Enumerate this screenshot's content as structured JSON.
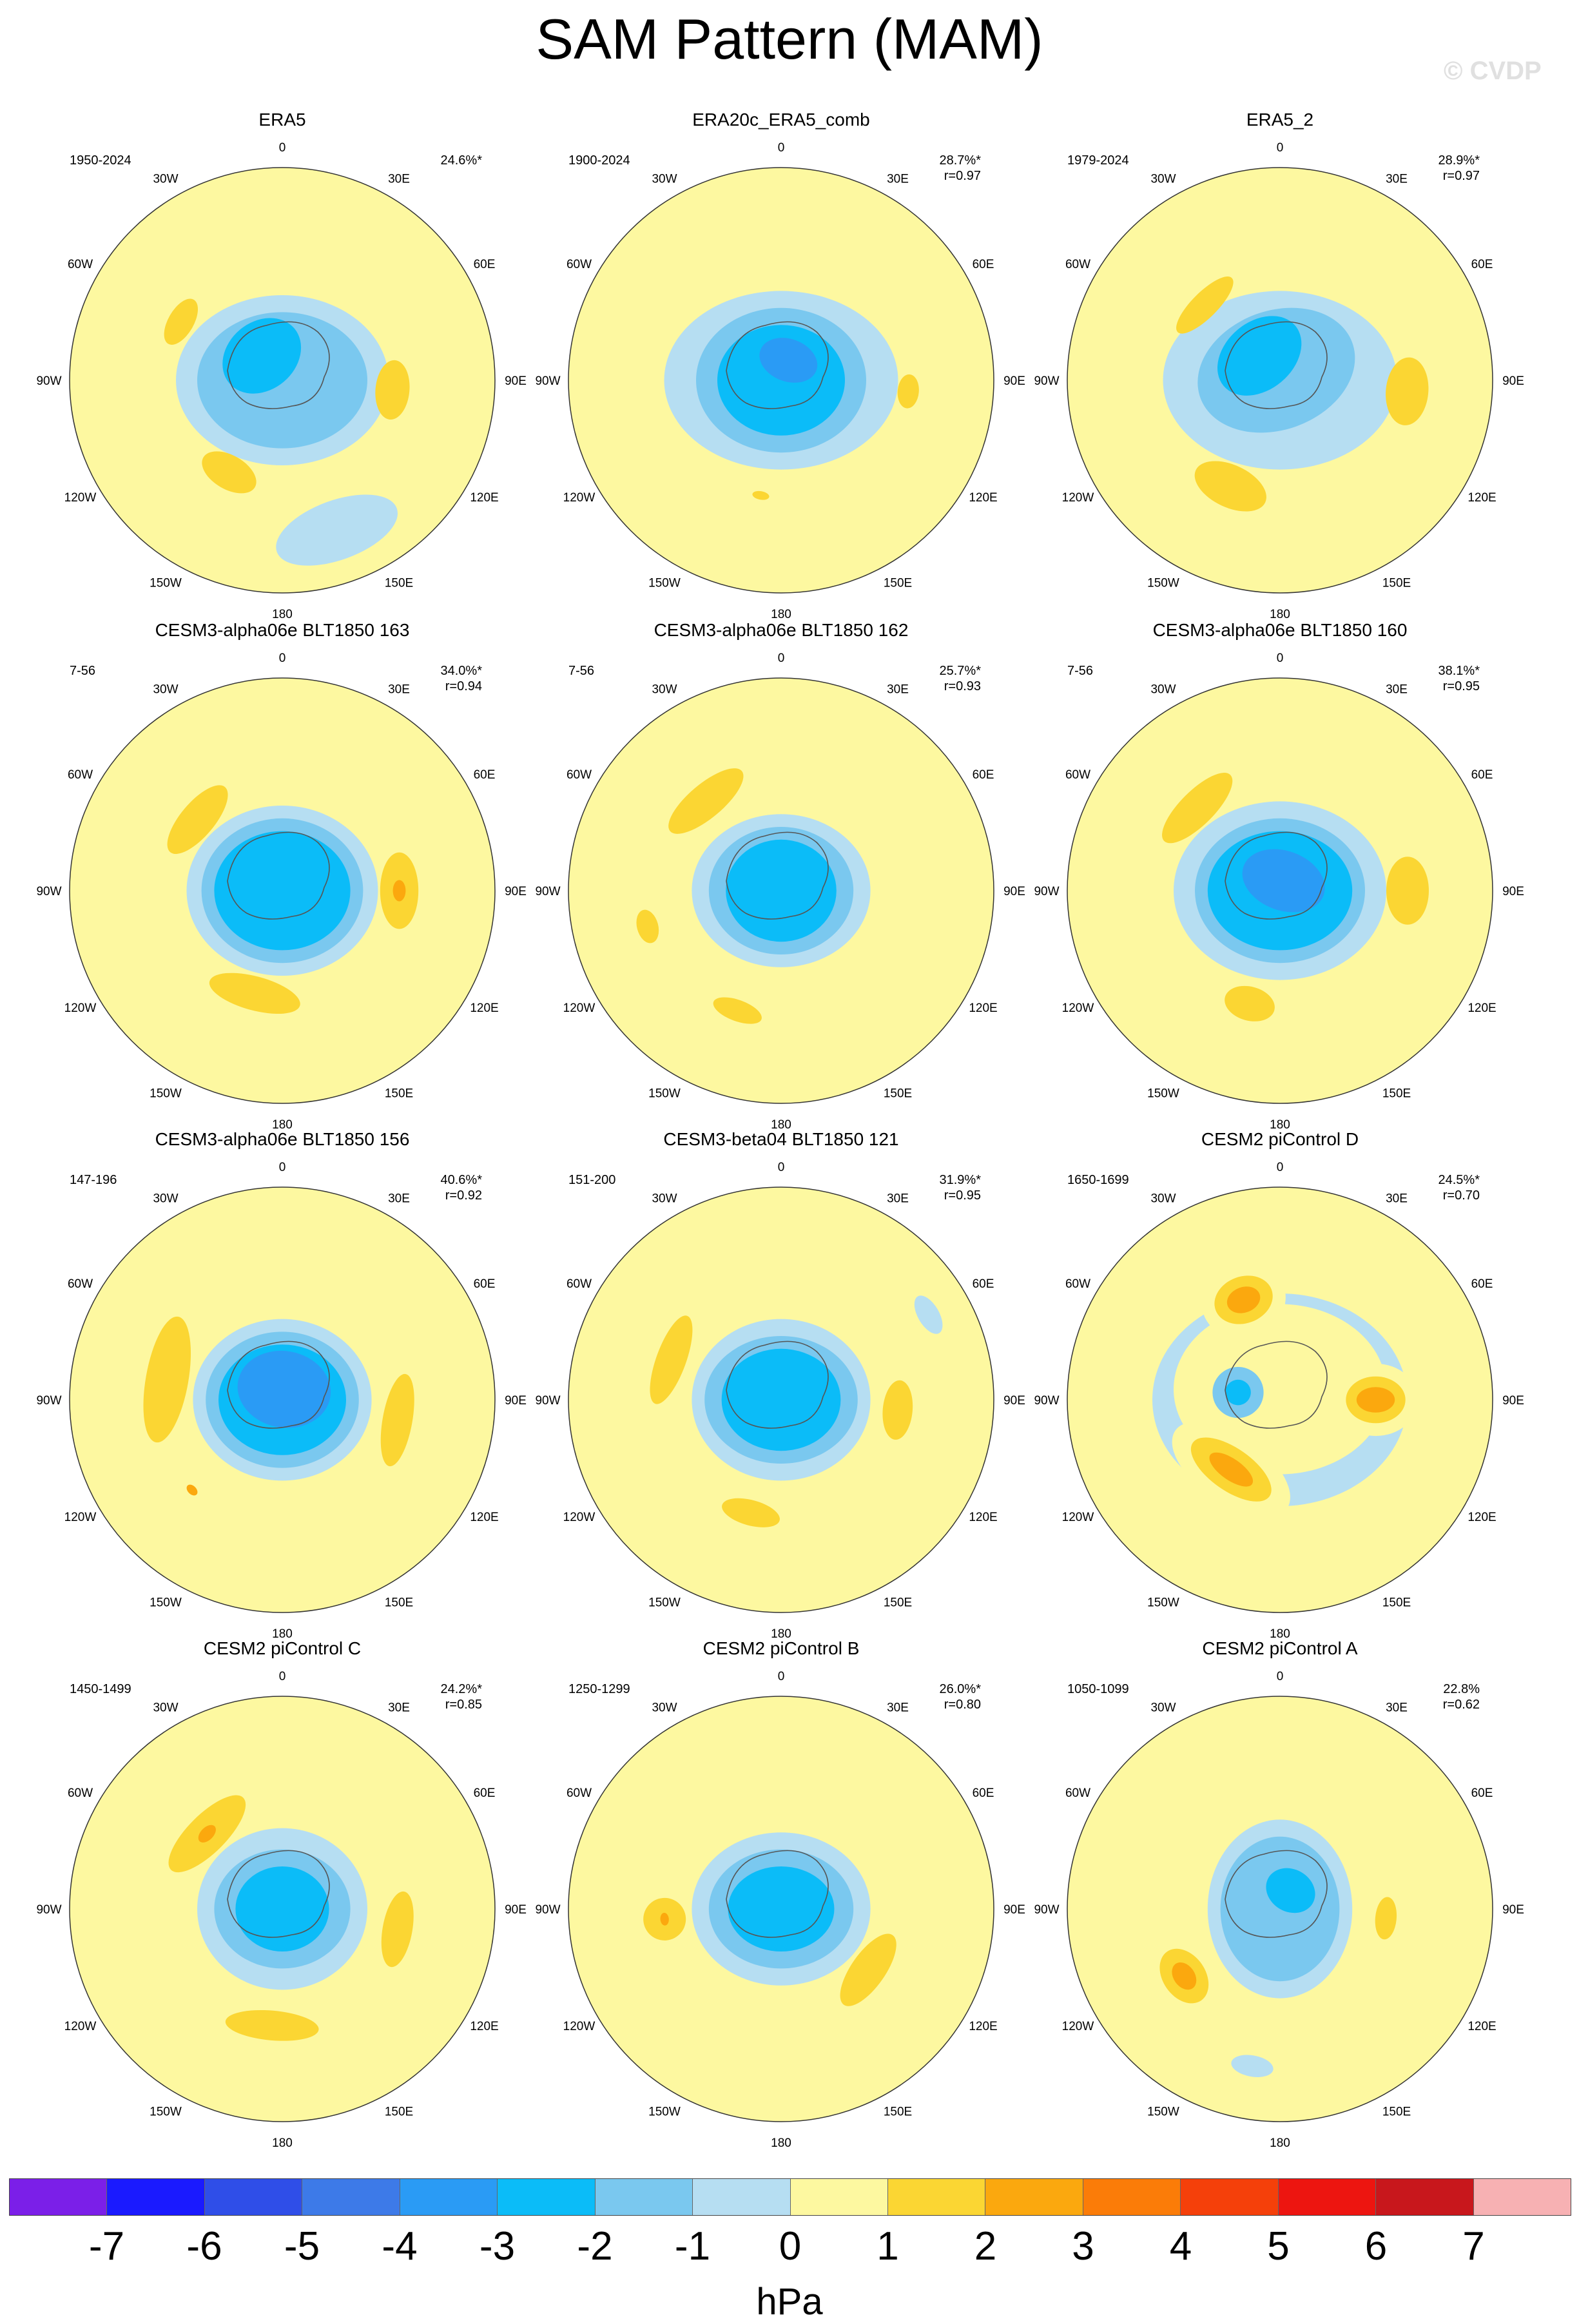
{
  "title": "SAM Pattern (MAM)",
  "watermark": "© CVDP",
  "units": "hPa",
  "colors": {
    "-7": "#7b1fe8",
    "-6": "#1a1aff",
    "-5": "#2f4ee8",
    "-4": "#3d7ae8",
    "-3": "#2a9bf5",
    "-2": "#0bbcf8",
    "-1": "#7ac8ef",
    "0": "#b6def2",
    "1": "#fdf8a0",
    "2": "#fbd633",
    "3": "#fba80e",
    "4": "#fb7c08",
    "5": "#f5400a",
    "6": "#ed1510",
    "7": "#c8171c",
    "8": "#f7b1b3"
  },
  "colorbar": {
    "labels": [
      "-7",
      "-6",
      "-5",
      "-4",
      "-3",
      "-2",
      "-1",
      "0",
      "1",
      "2",
      "3",
      "4",
      "5",
      "6",
      "7"
    ],
    "cell_colors": [
      "#7b1fe8",
      "#1a1aff",
      "#2f4ee8",
      "#3d7ae8",
      "#2a9bf5",
      "#0bbcf8",
      "#7ac8ef",
      "#b6def2",
      "#fdf8a0",
      "#fbd633",
      "#fba80e",
      "#fb7c08",
      "#f5400a",
      "#ed1510",
      "#c8171c",
      "#f7b1b3"
    ]
  },
  "axis_labels": {
    "0": "0",
    "30E": "30E",
    "60E": "60E",
    "90E": "90E",
    "120E": "120E",
    "150E": "150E",
    "180": "180",
    "150W": "150W",
    "120W": "120W",
    "90W": "90W",
    "60W": "60W",
    "30W": "30W"
  },
  "chart_data": [
    {
      "type": "heatmap",
      "title": "ERA5",
      "years": "1950-2024",
      "pct": "24.6%*",
      "r": "",
      "blobs": [
        {
          "lon": 0,
          "colat": 0,
          "level": -1,
          "rx": 0.5,
          "ry": 0.4
        },
        {
          "lon": 0,
          "colat": 0,
          "level": -2,
          "rx": 0.4,
          "ry": 0.32
        },
        {
          "lon": -40,
          "colat": 0.15,
          "level": -3,
          "rx": 0.2,
          "ry": 0.16
        },
        {
          "lon": 95,
          "colat": 0.52,
          "level": 2,
          "rx": 0.14,
          "ry": 0.08
        },
        {
          "lon": -60,
          "colat": 0.55,
          "level": 2,
          "rx": 0.12,
          "ry": 0.06
        },
        {
          "lon": -150,
          "colat": 0.5,
          "level": 2,
          "rx": 0.14,
          "ry": 0.08
        },
        {
          "lon": 160,
          "colat": 0.75,
          "level": -1,
          "rx": 0.3,
          "ry": 0.14
        }
      ]
    },
    {
      "type": "heatmap",
      "title": "ERA20c_ERA5_comb",
      "years": "1900-2024",
      "pct": "28.7%*",
      "r": "r=0.97",
      "blobs": [
        {
          "lon": 0,
          "colat": 0,
          "level": -1,
          "rx": 0.55,
          "ry": 0.42
        },
        {
          "lon": 0,
          "colat": 0,
          "level": -2,
          "rx": 0.4,
          "ry": 0.34
        },
        {
          "lon": 0,
          "colat": 0,
          "level": -3,
          "rx": 0.3,
          "ry": 0.26
        },
        {
          "lon": 20,
          "colat": 0.1,
          "level": -4,
          "rx": 0.14,
          "ry": 0.1
        },
        {
          "lon": 95,
          "colat": 0.6,
          "level": 2,
          "rx": 0.08,
          "ry": 0.05
        },
        {
          "lon": -170,
          "colat": 0.55,
          "level": 2,
          "rx": 0.04,
          "ry": 0.02
        }
      ]
    },
    {
      "type": "heatmap",
      "title": "ERA5_2",
      "years": "1979-2024",
      "pct": "28.9%*",
      "r": "r=0.97",
      "blobs": [
        {
          "lon": 0,
          "colat": 0,
          "level": -1,
          "rx": 0.55,
          "ry": 0.42
        },
        {
          "lon": -20,
          "colat": 0.05,
          "level": -2,
          "rx": 0.38,
          "ry": 0.28
        },
        {
          "lon": -40,
          "colat": 0.15,
          "level": -3,
          "rx": 0.22,
          "ry": 0.16
        },
        {
          "lon": 95,
          "colat": 0.6,
          "level": 2,
          "rx": 0.16,
          "ry": 0.1
        },
        {
          "lon": -45,
          "colat": 0.5,
          "level": 2,
          "rx": 0.18,
          "ry": 0.06
        },
        {
          "lon": -155,
          "colat": 0.55,
          "level": 2,
          "rx": 0.18,
          "ry": 0.1
        }
      ]
    },
    {
      "type": "heatmap",
      "title": "CESM3-alpha06e BLT1850 163",
      "years": "7-56",
      "pct": "34.0%*",
      "r": "r=0.94",
      "blobs": [
        {
          "lon": 0,
          "colat": 0,
          "level": -1,
          "rx": 0.45,
          "ry": 0.4
        },
        {
          "lon": 0,
          "colat": 0,
          "level": -2,
          "rx": 0.38,
          "ry": 0.34
        },
        {
          "lon": 0,
          "colat": 0,
          "level": -3,
          "rx": 0.32,
          "ry": 0.28
        },
        {
          "lon": 90,
          "colat": 0.55,
          "level": 2,
          "rx": 0.18,
          "ry": 0.09
        },
        {
          "lon": 90,
          "colat": 0.55,
          "level": 3,
          "rx": 0.05,
          "ry": 0.03
        },
        {
          "lon": -50,
          "colat": 0.52,
          "level": 2,
          "rx": 0.2,
          "ry": 0.08
        },
        {
          "lon": -165,
          "colat": 0.5,
          "level": 2,
          "rx": 0.22,
          "ry": 0.08
        }
      ]
    },
    {
      "type": "heatmap",
      "title": "CESM3-alpha06e BLT1850 162",
      "years": "7-56",
      "pct": "25.7%*",
      "r": "r=0.93",
      "blobs": [
        {
          "lon": 0,
          "colat": 0,
          "level": -1,
          "rx": 0.42,
          "ry": 0.36
        },
        {
          "lon": 0,
          "colat": 0,
          "level": -2,
          "rx": 0.34,
          "ry": 0.3
        },
        {
          "lon": 0,
          "colat": 0,
          "level": -3,
          "rx": 0.26,
          "ry": 0.24
        },
        {
          "lon": -40,
          "colat": 0.55,
          "level": 2,
          "rx": 0.22,
          "ry": 0.08
        },
        {
          "lon": -105,
          "colat": 0.65,
          "level": 2,
          "rx": 0.08,
          "ry": 0.05
        },
        {
          "lon": -160,
          "colat": 0.6,
          "level": 2,
          "rx": 0.12,
          "ry": 0.05
        }
      ]
    },
    {
      "type": "heatmap",
      "title": "CESM3-alpha06e BLT1850 160",
      "years": "7-56",
      "pct": "38.1%*",
      "r": "r=0.95",
      "blobs": [
        {
          "lon": 0,
          "colat": 0,
          "level": -1,
          "rx": 0.5,
          "ry": 0.42
        },
        {
          "lon": 0,
          "colat": 0,
          "level": -2,
          "rx": 0.4,
          "ry": 0.34
        },
        {
          "lon": 0,
          "colat": 0,
          "level": -3,
          "rx": 0.34,
          "ry": 0.28
        },
        {
          "lon": 20,
          "colat": 0.05,
          "level": -4,
          "rx": 0.2,
          "ry": 0.14
        },
        {
          "lon": 90,
          "colat": 0.6,
          "level": 2,
          "rx": 0.16,
          "ry": 0.1
        },
        {
          "lon": -45,
          "colat": 0.55,
          "level": 2,
          "rx": 0.22,
          "ry": 0.08
        },
        {
          "lon": -165,
          "colat": 0.55,
          "level": 2,
          "rx": 0.12,
          "ry": 0.08
        }
      ]
    },
    {
      "type": "heatmap",
      "title": "CESM3-alpha06e BLT1850 156",
      "years": "147-196",
      "pct": "40.6%*",
      "r": "r=0.92",
      "blobs": [
        {
          "lon": 0,
          "colat": 0,
          "level": -1,
          "rx": 0.42,
          "ry": 0.38
        },
        {
          "lon": 0,
          "colat": 0,
          "level": -2,
          "rx": 0.36,
          "ry": 0.32
        },
        {
          "lon": 0,
          "colat": 0,
          "level": -3,
          "rx": 0.3,
          "ry": 0.26
        },
        {
          "lon": 10,
          "colat": 0.05,
          "level": -4,
          "rx": 0.22,
          "ry": 0.18
        },
        {
          "lon": -80,
          "colat": 0.55,
          "level": 2,
          "rx": 0.3,
          "ry": 0.1
        },
        {
          "lon": 100,
          "colat": 0.55,
          "level": 2,
          "rx": 0.22,
          "ry": 0.07
        },
        {
          "lon": -135,
          "colat": 0.6,
          "level": 3,
          "rx": 0.03,
          "ry": 0.02
        }
      ]
    },
    {
      "type": "heatmap",
      "title": "CESM3-beta04 BLT1850 121",
      "years": "151-200",
      "pct": "31.9%*",
      "r": "r=0.95",
      "blobs": [
        {
          "lon": 0,
          "colat": 0,
          "level": -1,
          "rx": 0.42,
          "ry": 0.38
        },
        {
          "lon": 0,
          "colat": 0,
          "level": -2,
          "rx": 0.36,
          "ry": 0.3
        },
        {
          "lon": 0,
          "colat": 0,
          "level": -3,
          "rx": 0.28,
          "ry": 0.24
        },
        {
          "lon": -70,
          "colat": 0.55,
          "level": 2,
          "rx": 0.22,
          "ry": 0.07
        },
        {
          "lon": 95,
          "colat": 0.55,
          "level": 2,
          "rx": 0.14,
          "ry": 0.07
        },
        {
          "lon": -165,
          "colat": 0.55,
          "level": 2,
          "rx": 0.14,
          "ry": 0.06
        },
        {
          "lon": 60,
          "colat": 0.8,
          "level": -1,
          "rx": 0.1,
          "ry": 0.05
        }
      ]
    },
    {
      "type": "heatmap",
      "title": "CESM2 piControl D",
      "years": "1650-1699",
      "pct": "24.5%*",
      "r": "r=0.70",
      "blobs": [
        {
          "lon": 0,
          "colat": 0,
          "level": -1,
          "rx": 0.6,
          "ry": 0.5
        },
        {
          "lon": 0,
          "colat": 0.05,
          "level": 0,
          "rx": 0.5,
          "ry": 0.4
        },
        {
          "lon": -20,
          "colat": 0.5,
          "level": 1,
          "rx": 0.2,
          "ry": 0.18
        },
        {
          "lon": -20,
          "colat": 0.5,
          "level": 2,
          "rx": 0.14,
          "ry": 0.11
        },
        {
          "lon": -20,
          "colat": 0.5,
          "level": 3,
          "rx": 0.08,
          "ry": 0.06
        },
        {
          "lon": 90,
          "colat": 0.45,
          "level": 1,
          "rx": 0.17,
          "ry": 0.2
        },
        {
          "lon": 90,
          "colat": 0.45,
          "level": 2,
          "rx": 0.11,
          "ry": 0.14
        },
        {
          "lon": 90,
          "colat": 0.45,
          "level": 3,
          "rx": 0.06,
          "ry": 0.09
        },
        {
          "lon": -145,
          "colat": 0.4,
          "level": 1,
          "rx": 0.32,
          "ry": 0.16
        },
        {
          "lon": -145,
          "colat": 0.4,
          "level": 2,
          "rx": 0.22,
          "ry": 0.1
        },
        {
          "lon": -145,
          "colat": 0.4,
          "level": 3,
          "rx": 0.12,
          "ry": 0.05
        },
        {
          "lon": -80,
          "colat": 0.2,
          "level": -2,
          "rx": 0.12,
          "ry": 0.12
        },
        {
          "lon": -80,
          "colat": 0.2,
          "level": -3,
          "rx": 0.06,
          "ry": 0.06
        }
      ]
    },
    {
      "type": "heatmap",
      "title": "CESM2 piControl C",
      "years": "1450-1499",
      "pct": "24.2%*",
      "r": "r=0.85",
      "blobs": [
        {
          "lon": 0,
          "colat": 0,
          "level": -1,
          "rx": 0.4,
          "ry": 0.38
        },
        {
          "lon": 0,
          "colat": 0,
          "level": -2,
          "rx": 0.32,
          "ry": 0.28
        },
        {
          "lon": 0,
          "colat": 0,
          "level": -3,
          "rx": 0.22,
          "ry": 0.2
        },
        {
          "lon": -45,
          "colat": 0.5,
          "level": 2,
          "rx": 0.24,
          "ry": 0.09
        },
        {
          "lon": -45,
          "colat": 0.5,
          "level": 3,
          "rx": 0.05,
          "ry": 0.03
        },
        {
          "lon": 100,
          "colat": 0.55,
          "level": 2,
          "rx": 0.18,
          "ry": 0.07
        },
        {
          "lon": -175,
          "colat": 0.55,
          "level": 2,
          "rx": 0.22,
          "ry": 0.07
        }
      ]
    },
    {
      "type": "heatmap",
      "title": "CESM2 piControl B",
      "years": "1250-1299",
      "pct": "26.0%*",
      "r": "r=0.80",
      "blobs": [
        {
          "lon": 0,
          "colat": 0,
          "level": -1,
          "rx": 0.42,
          "ry": 0.36
        },
        {
          "lon": 0,
          "colat": 0,
          "level": -2,
          "rx": 0.34,
          "ry": 0.28
        },
        {
          "lon": 0,
          "colat": 0,
          "level": -3,
          "rx": 0.25,
          "ry": 0.2
        },
        {
          "lon": -95,
          "colat": 0.55,
          "level": 2,
          "rx": 0.1,
          "ry": 0.1
        },
        {
          "lon": -95,
          "colat": 0.55,
          "level": 3,
          "rx": 0.03,
          "ry": 0.02
        },
        {
          "lon": 125,
          "colat": 0.5,
          "level": 2,
          "rx": 0.2,
          "ry": 0.08
        }
      ]
    },
    {
      "type": "heatmap",
      "title": "CESM2 piControl A",
      "years": "1050-1099",
      "pct": "22.8%",
      "r": "r=0.62",
      "blobs": [
        {
          "lon": 0,
          "colat": 0,
          "level": -1,
          "rx": 0.34,
          "ry": 0.42
        },
        {
          "lon": 0,
          "colat": 0,
          "level": -2,
          "rx": 0.28,
          "ry": 0.34
        },
        {
          "lon": 30,
          "colat": 0.1,
          "level": -3,
          "rx": 0.12,
          "ry": 0.1
        },
        {
          "lon": -125,
          "colat": 0.55,
          "level": 2,
          "rx": 0.14,
          "ry": 0.1
        },
        {
          "lon": -125,
          "colat": 0.55,
          "level": 3,
          "rx": 0.07,
          "ry": 0.05
        },
        {
          "lon": 95,
          "colat": 0.5,
          "level": 2,
          "rx": 0.1,
          "ry": 0.05
        },
        {
          "lon": -170,
          "colat": 0.75,
          "level": -1,
          "rx": 0.1,
          "ry": 0.05
        }
      ]
    }
  ]
}
